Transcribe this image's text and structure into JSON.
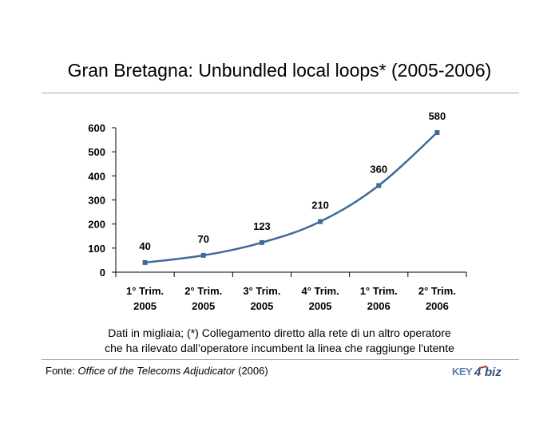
{
  "title": "Gran Bretagna: Unbundled local loops* (2005-2006)",
  "note": {
    "line1": "Dati in migliaia; (*) Collegamento diretto alla rete di un altro operatore",
    "line2": "che ha rilevato dall’operatore incumbent la linea che raggiunge l'utente"
  },
  "source": {
    "prefix": "Fonte: ",
    "name": "Office of the Telecoms Adjudicator",
    "suffix": " (2006)"
  },
  "logo": {
    "text_left": "KEY4",
    "text_right": "biz"
  },
  "colors": {
    "series": "#3e6a99",
    "rule": "#a8a8a8"
  },
  "chart_data": {
    "type": "line",
    "categories": [
      [
        "1° Trim.",
        "2005"
      ],
      [
        "2° Trim.",
        "2005"
      ],
      [
        "3° Trim.",
        "2005"
      ],
      [
        "4° Trim.",
        "2005"
      ],
      [
        "1° Trim.",
        "2006"
      ],
      [
        "2° Trim.",
        "2006"
      ]
    ],
    "values": [
      40,
      70,
      123,
      210,
      360,
      580
    ],
    "data_labels": [
      "40",
      "70",
      "123",
      "210",
      "360",
      "580"
    ],
    "ylim": [
      0,
      600
    ],
    "yticks": [
      0,
      100,
      200,
      300,
      400,
      500,
      600
    ],
    "grid": false,
    "marker": "square",
    "smooth": true
  }
}
